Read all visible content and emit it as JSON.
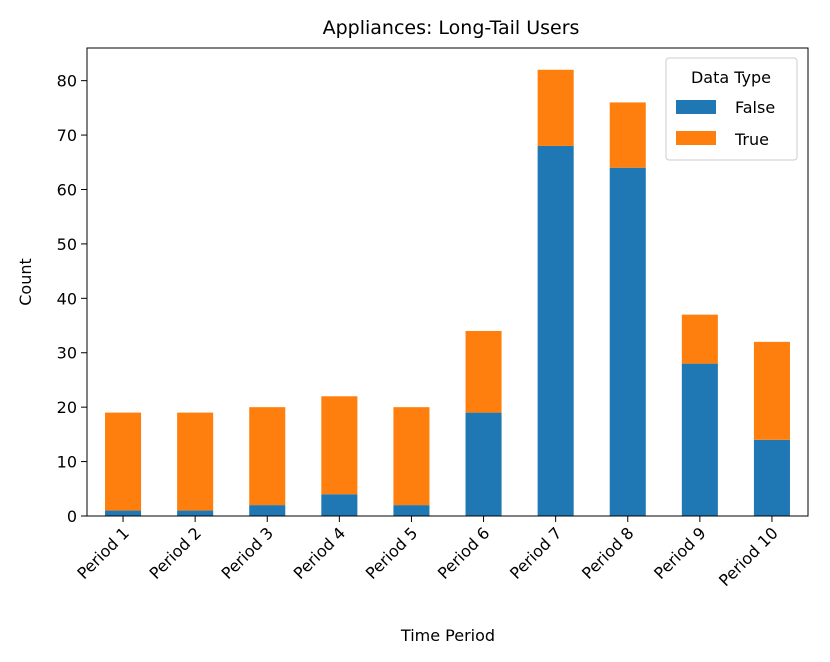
{
  "chart_data": {
    "type": "bar",
    "stacked": true,
    "title": "Appliances: Long-Tail Users",
    "xlabel": "Time Period",
    "ylabel": "Count",
    "ylim": [
      0,
      86
    ],
    "yticks": [
      0,
      10,
      20,
      30,
      40,
      50,
      60,
      70,
      80
    ],
    "categories": [
      "Period 1",
      "Period 2",
      "Period 3",
      "Period 4",
      "Period 5",
      "Period 6",
      "Period 7",
      "Period 8",
      "Period 9",
      "Period 10"
    ],
    "series": [
      {
        "name": "False",
        "color": "#1f77b4",
        "values": [
          1,
          1,
          2,
          4,
          2,
          19,
          68,
          64,
          28,
          14
        ]
      },
      {
        "name": "True",
        "color": "#ff7f0e",
        "values": [
          18,
          18,
          18,
          18,
          18,
          15,
          14,
          12,
          9,
          18
        ]
      }
    ],
    "legend": {
      "title": "Data Type",
      "position": "top-right"
    },
    "grid": false
  }
}
